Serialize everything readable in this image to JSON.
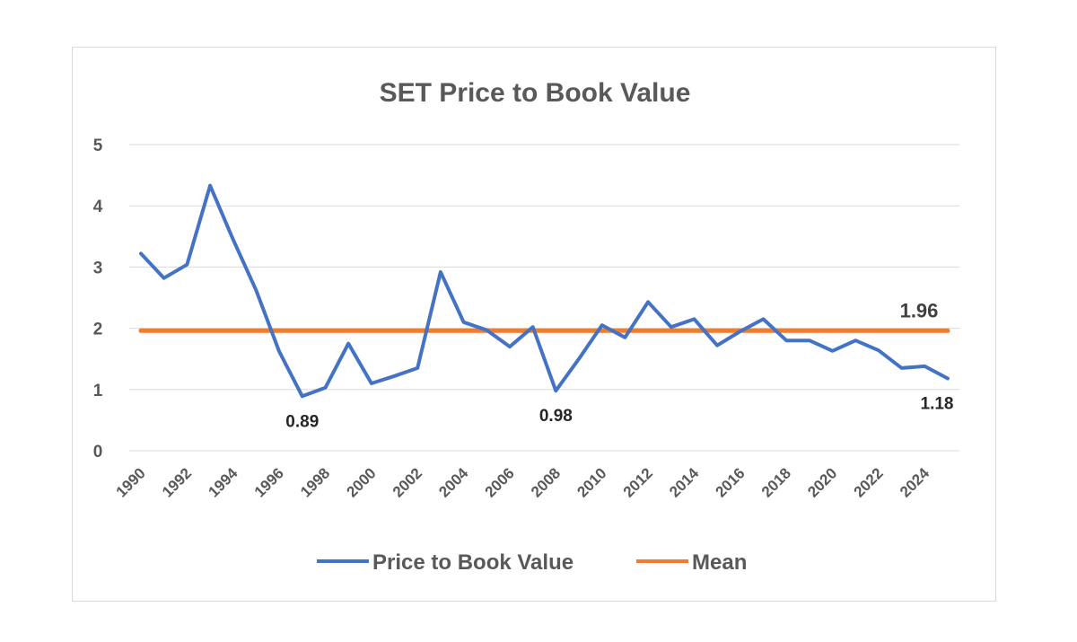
{
  "chart_data": {
    "type": "line",
    "title": "SET Price to Book Value",
    "xlabel": "",
    "ylabel": "",
    "ylim": [
      0,
      5
    ],
    "yticks": [
      "0",
      "1",
      "2",
      "3",
      "4",
      "5"
    ],
    "x": [
      1990,
      1991,
      1992,
      1993,
      1994,
      1995,
      1996,
      1997,
      1998,
      1999,
      2000,
      2001,
      2002,
      2003,
      2004,
      2005,
      2006,
      2007,
      2008,
      2009,
      2010,
      2011,
      2012,
      2013,
      2014,
      2015,
      2016,
      2017,
      2018,
      2019,
      2020,
      2021,
      2022,
      2023,
      2024,
      2025
    ],
    "xtick_labels": [
      "1990",
      "1992",
      "1994",
      "1996",
      "1998",
      "2000",
      "2002",
      "2004",
      "2006",
      "2008",
      "2010",
      "2012",
      "2014",
      "2016",
      "2018",
      "2020",
      "2022",
      "2024"
    ],
    "series": [
      {
        "name": "Price to Book Value",
        "color": "#4472C4",
        "values": [
          3.22,
          2.82,
          3.04,
          4.33,
          3.45,
          2.62,
          1.62,
          0.89,
          1.03,
          1.75,
          1.1,
          1.22,
          1.35,
          2.92,
          2.1,
          1.97,
          1.7,
          2.02,
          0.98,
          1.5,
          2.05,
          1.85,
          2.43,
          2.02,
          2.15,
          1.72,
          1.95,
          2.15,
          1.8,
          1.8,
          1.63,
          1.8,
          1.64,
          1.35,
          1.38,
          1.18
        ]
      },
      {
        "name": "Mean",
        "color": "#ED7D31",
        "values": [
          1.96,
          1.96,
          1.96,
          1.96,
          1.96,
          1.96,
          1.96,
          1.96,
          1.96,
          1.96,
          1.96,
          1.96,
          1.96,
          1.96,
          1.96,
          1.96,
          1.96,
          1.96,
          1.96,
          1.96,
          1.96,
          1.96,
          1.96,
          1.96,
          1.96,
          1.96,
          1.96,
          1.96,
          1.96,
          1.96,
          1.96,
          1.96,
          1.96,
          1.96,
          1.96,
          1.96
        ]
      }
    ],
    "annotations": [
      {
        "text": "0.89",
        "x": 1997,
        "y": 0.89,
        "position": "below"
      },
      {
        "text": "0.98",
        "x": 2008,
        "y": 0.98,
        "position": "below"
      },
      {
        "text": "1.18",
        "x": 2025,
        "y": 1.18,
        "position": "below"
      },
      {
        "text": "1.96",
        "x": 2025,
        "y": 1.96,
        "position": "above"
      }
    ],
    "legend": {
      "position": "bottom",
      "entries": [
        "Price to Book Value",
        "Mean"
      ]
    },
    "grid": true
  }
}
